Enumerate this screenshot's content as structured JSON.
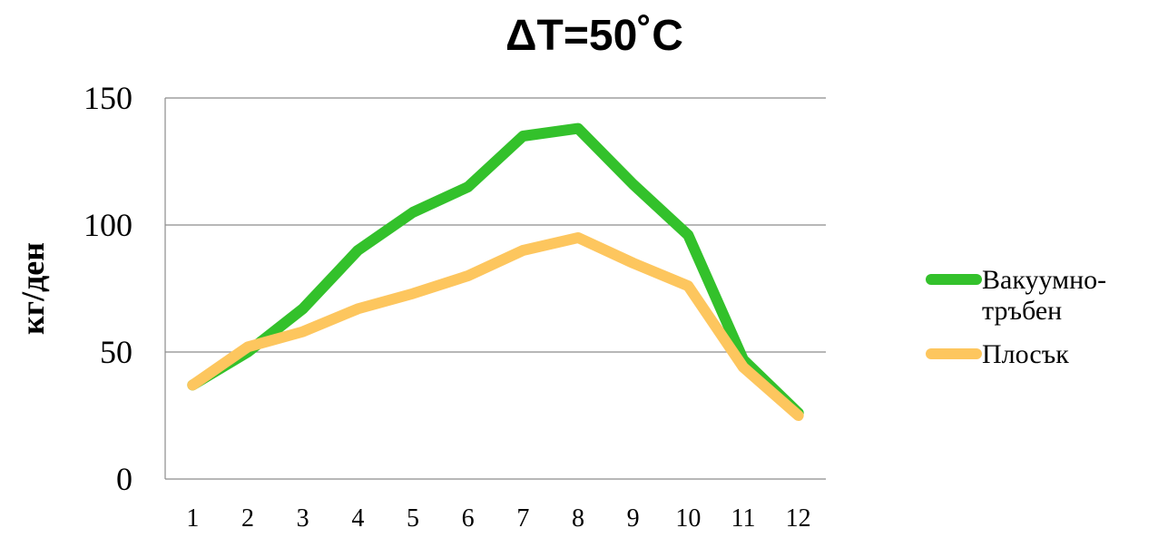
{
  "chart_data": {
    "type": "line",
    "title": "ΔT=50˚C",
    "xlabel": "",
    "ylabel": "кг/ден",
    "categories": [
      "1",
      "2",
      "3",
      "4",
      "5",
      "6",
      "7",
      "8",
      "9",
      "10",
      "11",
      "12"
    ],
    "ylim": [
      0,
      150
    ],
    "yticks": [
      "0",
      "50",
      "100",
      "150"
    ],
    "grid": true,
    "legend_position": "right",
    "series": [
      {
        "name": "Вакуумно-тръбен",
        "legend_lines": [
          "Вакуумно-",
          "тръбен"
        ],
        "color": "#33c12b",
        "values": [
          37,
          50,
          67,
          90,
          105,
          115,
          135,
          138,
          116,
          96,
          47,
          26
        ]
      },
      {
        "name": "Плосък",
        "legend_lines": [
          "Плосък"
        ],
        "color": "#fdc65e",
        "values": [
          37,
          52,
          58,
          67,
          73,
          80,
          90,
          95,
          85,
          76,
          44,
          25
        ]
      }
    ]
  }
}
